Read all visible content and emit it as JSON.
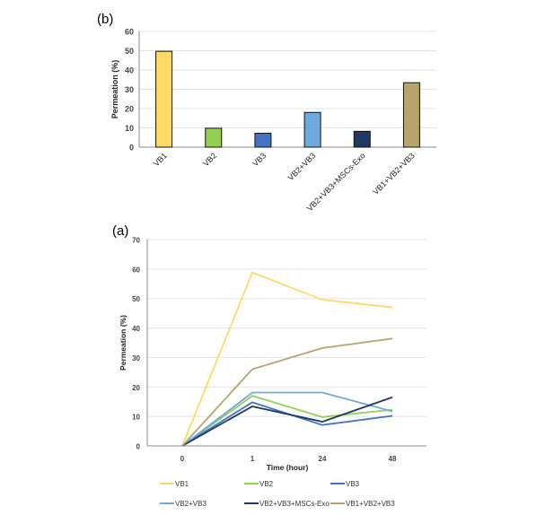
{
  "chart_data": [
    {
      "panel_label": "(b)",
      "type": "bar",
      "ylabel": "Permeation (%)",
      "xlabel": "",
      "ylim": [
        0,
        60
      ],
      "yticks": [
        0,
        10,
        20,
        30,
        40,
        50,
        60
      ],
      "grid": true,
      "categories": [
        "VB1",
        "VB2",
        "VB3",
        "VB2+VB3",
        "VB2+VB3+MSCs-Exo",
        "VB1+VB2+VB3"
      ],
      "values": [
        49.7,
        9.8,
        7.2,
        18.0,
        8.2,
        33.4
      ],
      "colors": [
        "#FFD966",
        "#92D050",
        "#4472C4",
        "#6FA8DC",
        "#1F3864",
        "#B8A46B"
      ]
    },
    {
      "panel_label": "(a)",
      "type": "line",
      "ylabel": "Permeation (%)",
      "xlabel": "Time (hour)",
      "ylim": [
        0,
        70
      ],
      "yticks": [
        0,
        10,
        20,
        30,
        40,
        50,
        60,
        70
      ],
      "x": [
        "0",
        "1",
        "24",
        "48"
      ],
      "grid": true,
      "legend_position": "bottom",
      "series": [
        {
          "name": "VB1",
          "color": "#FFD966",
          "values": [
            0,
            58.8,
            49.6,
            47.0
          ]
        },
        {
          "name": "VB2",
          "color": "#92D050",
          "values": [
            0,
            17.0,
            9.8,
            12.3
          ]
        },
        {
          "name": "VB3",
          "color": "#4472C4",
          "values": [
            0,
            14.8,
            7.1,
            10.2
          ]
        },
        {
          "name": "VB2+VB3",
          "color": "#6FA8DC",
          "values": [
            0,
            18.1,
            18.1,
            11.7
          ]
        },
        {
          "name": "VB2+VB3+MSCs-Exo",
          "color": "#1F3864",
          "values": [
            0,
            13.4,
            8.2,
            16.5
          ]
        },
        {
          "name": "VB1+VB2+VB3",
          "color": "#B8A46B",
          "values": [
            0,
            26.0,
            33.2,
            36.4
          ]
        }
      ]
    }
  ]
}
